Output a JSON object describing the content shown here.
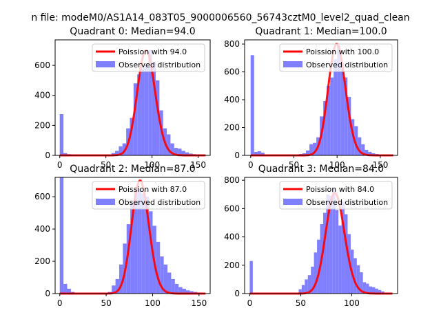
{
  "suptitle": "n file: modeM0/AS1A14_083T05_9000006560_56743cztM0_level2_quad_clean",
  "colors": {
    "hist": "#7f7fff",
    "fit": "#ff0000",
    "axis": "#000000"
  },
  "chart_data": [
    {
      "type": "bar",
      "title": "Quadrant 0: Median=94.0",
      "median": 94.0,
      "xlim": [
        -5,
        163
      ],
      "ylim": [
        0,
        770
      ],
      "xticks": [
        0,
        50,
        100,
        150
      ],
      "yticks": [
        0,
        200,
        400,
        600
      ],
      "bin_width": 4,
      "bins_start": [
        0,
        4,
        8,
        12,
        16,
        52,
        56,
        60,
        64,
        68,
        72,
        76,
        80,
        84,
        88,
        92,
        96,
        100,
        104,
        108,
        112,
        116,
        120,
        124,
        128,
        132,
        136,
        140,
        144,
        148,
        152
      ],
      "counts": [
        275,
        15,
        8,
        5,
        3,
        5,
        15,
        30,
        60,
        80,
        180,
        250,
        480,
        540,
        580,
        600,
        700,
        620,
        500,
        300,
        180,
        140,
        80,
        50,
        45,
        30,
        20,
        12,
        8,
        5,
        3
      ],
      "poisson_peak": 700,
      "legend": {
        "fit": "Poission with 94.0",
        "hist": "Observed distribution"
      }
    },
    {
      "type": "bar",
      "title": "Quadrant 1: Median=100.0",
      "median": 100.0,
      "xlim": [
        -7,
        170
      ],
      "ylim": [
        0,
        830
      ],
      "xticks": [
        0,
        50,
        100,
        150
      ],
      "yticks": [
        0,
        200,
        400,
        600,
        800
      ],
      "bin_width": 4,
      "bins_start": [
        0,
        4,
        8,
        12,
        56,
        60,
        64,
        68,
        72,
        76,
        80,
        84,
        88,
        92,
        96,
        100,
        104,
        108,
        112,
        116,
        120,
        124,
        128,
        132,
        136,
        140,
        144,
        148
      ],
      "counts": [
        720,
        25,
        30,
        20,
        10,
        15,
        35,
        80,
        90,
        130,
        280,
        390,
        500,
        560,
        690,
        790,
        660,
        560,
        420,
        260,
        210,
        130,
        80,
        40,
        25,
        15,
        10,
        5
      ],
      "poisson_peak": 800,
      "legend": {
        "fit": "Poission with 100.0",
        "hist": "Observed distribution"
      }
    },
    {
      "type": "bar",
      "title": "Quadrant 2: Median=87.0",
      "median": 87.0,
      "xlim": [
        -5,
        162
      ],
      "ylim": [
        0,
        720
      ],
      "xticks": [
        0,
        50,
        100,
        150
      ],
      "yticks": [
        0,
        200,
        400,
        600
      ],
      "bin_width": 4,
      "bins_start": [
        0,
        4,
        8,
        12,
        44,
        48,
        52,
        56,
        60,
        64,
        68,
        72,
        76,
        80,
        84,
        88,
        92,
        96,
        100,
        104,
        108,
        112,
        116,
        120,
        124,
        128,
        132,
        136,
        140,
        144,
        148,
        152
      ],
      "counts": [
        730,
        60,
        30,
        10,
        5,
        5,
        10,
        50,
        90,
        180,
        310,
        430,
        570,
        640,
        650,
        620,
        600,
        510,
        420,
        320,
        230,
        180,
        130,
        90,
        60,
        40,
        30,
        20,
        15,
        10,
        5,
        3
      ],
      "poisson_peak": 700,
      "legend": {
        "fit": "Poission with 87.0",
        "hist": "Observed distribution"
      }
    },
    {
      "type": "bar",
      "title": "Quadrant 3: Median=84.0",
      "median": 84.0,
      "xlim": [
        -5,
        145
      ],
      "ylim": [
        0,
        820
      ],
      "xticks": [
        0,
        50,
        100
      ],
      "yticks": [
        0,
        200,
        400,
        600,
        800
      ],
      "bin_width": 3,
      "bins_start": [
        0,
        3,
        48,
        51,
        54,
        57,
        60,
        63,
        66,
        69,
        72,
        75,
        78,
        81,
        84,
        87,
        90,
        93,
        96,
        99,
        102,
        105,
        108,
        111,
        114,
        117,
        120,
        123,
        126,
        129
      ],
      "counts": [
        230,
        5,
        30,
        60,
        100,
        130,
        190,
        290,
        380,
        490,
        570,
        700,
        690,
        740,
        590,
        480,
        650,
        560,
        420,
        310,
        250,
        200,
        150,
        80,
        70,
        50,
        45,
        35,
        25,
        15
      ],
      "poisson_peak": 710,
      "legend": {
        "fit": "Poission with 84.0",
        "hist": "Observed distribution"
      }
    }
  ]
}
